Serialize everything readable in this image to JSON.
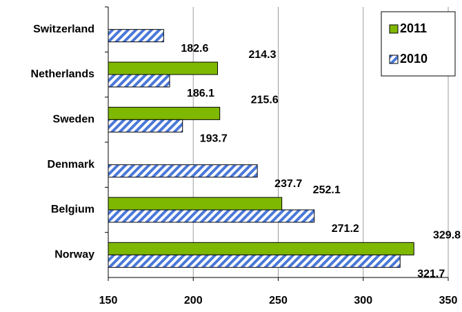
{
  "chart_data": {
    "type": "barh",
    "categories": [
      "Switzerland",
      "Netherlands",
      "Sweden",
      "Denmark",
      "Belgium",
      "Norway"
    ],
    "series": [
      {
        "name": "2011",
        "color": "#7fb800",
        "values": [
          null,
          214.3,
          215.6,
          null,
          252.1,
          329.8
        ]
      },
      {
        "name": "2010",
        "color": "#4a78d8",
        "values": [
          182.6,
          186.1,
          193.7,
          237.7,
          271.2,
          321.7
        ]
      }
    ],
    "xlim": [
      150,
      350
    ],
    "xticks": [
      150,
      200,
      250,
      300,
      350
    ],
    "grid": true,
    "legend": "upper right"
  }
}
